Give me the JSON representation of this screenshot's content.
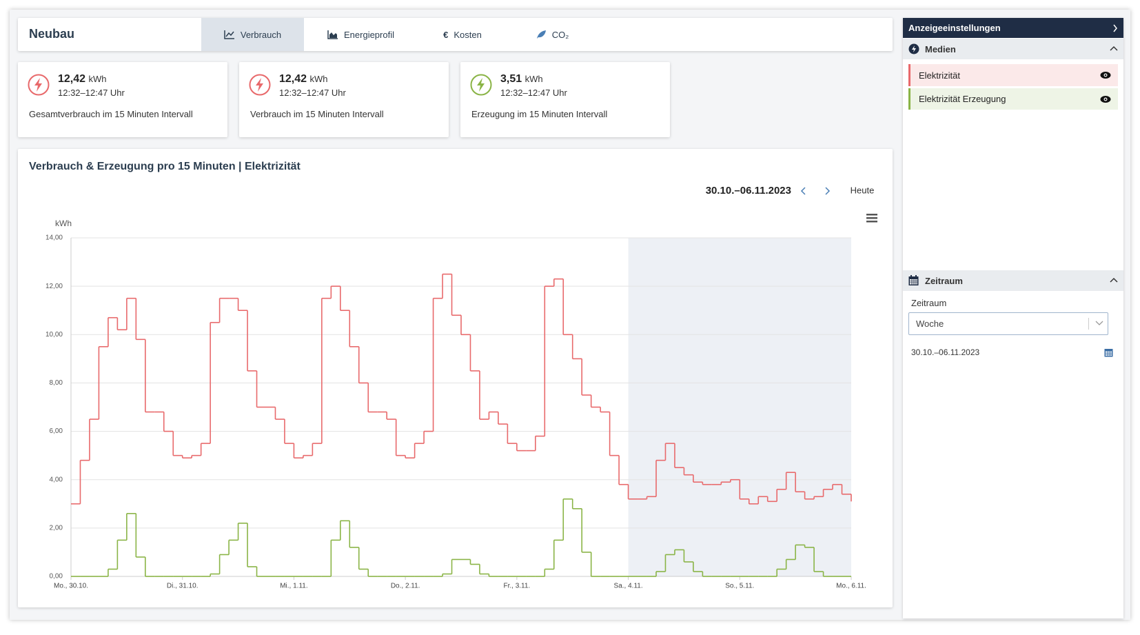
{
  "header": {
    "title": "Neubau",
    "tabs": [
      "Verbrauch",
      "Energieprofil",
      "Kosten",
      "CO₂"
    ]
  },
  "kpis": [
    {
      "value": "12,42",
      "unit": "kWh",
      "time": "12:32–12:47 Uhr",
      "label": "Gesamtverbrauch im 15 Minuten Intervall"
    },
    {
      "value": "12,42",
      "unit": "kWh",
      "time": "12:32–12:47 Uhr",
      "label": "Verbrauch im 15 Minuten Intervall"
    },
    {
      "value": "3,51",
      "unit": "kWh",
      "time": "12:32–12:47 Uhr",
      "label": "Erzeugung im 15 Minuten Intervall"
    }
  ],
  "chart_data": {
    "type": "line",
    "step": true,
    "title": "Verbrauch & Erzeugung pro 15 Minuten | Elektrizität",
    "date_range": "30.10.–06.11.2023",
    "today_button": "Heute",
    "y_label": "kWh",
    "weekend_from": "Sa., 4.11.",
    "categories": [
      "Mo., 30.10.",
      null,
      null,
      null,
      null,
      null,
      null,
      null,
      null,
      null,
      null,
      null,
      "Di., 31.10.",
      null,
      null,
      null,
      null,
      null,
      null,
      null,
      null,
      null,
      null,
      null,
      "Mi., 1.11.",
      null,
      null,
      null,
      null,
      null,
      null,
      null,
      null,
      null,
      null,
      null,
      "Do., 2.11.",
      null,
      null,
      null,
      null,
      null,
      null,
      null,
      null,
      null,
      null,
      null,
      "Fr., 3.11.",
      null,
      null,
      null,
      null,
      null,
      null,
      null,
      null,
      null,
      null,
      null,
      "Sa., 4.11.",
      null,
      null,
      null,
      null,
      null,
      null,
      null,
      null,
      null,
      null,
      null,
      "So., 5.11.",
      null,
      null,
      null,
      null,
      null,
      null,
      null,
      null,
      null,
      null,
      null,
      "Mo., 6.11."
    ],
    "series": [
      {
        "name": "Elektrizität",
        "color": "#e8696b",
        "values": [
          3.0,
          4.8,
          6.5,
          9.5,
          10.7,
          10.2,
          11.5,
          9.8,
          6.8,
          6.8,
          6.0,
          5.0,
          4.9,
          5.0,
          5.5,
          10.5,
          11.5,
          11.5,
          11.0,
          8.5,
          7.0,
          7.0,
          6.5,
          5.5,
          4.9,
          5.0,
          5.5,
          11.5,
          12.0,
          11.0,
          9.5,
          8.0,
          6.8,
          6.8,
          6.5,
          5.0,
          4.9,
          5.5,
          6.0,
          11.5,
          12.5,
          10.8,
          10.0,
          8.5,
          6.5,
          6.8,
          6.3,
          5.5,
          5.2,
          5.2,
          5.8,
          12.0,
          12.3,
          10.0,
          9.0,
          7.5,
          7.0,
          6.8,
          5.0,
          3.8,
          3.2,
          3.2,
          3.3,
          4.8,
          5.5,
          4.5,
          4.2,
          3.9,
          3.8,
          3.8,
          3.9,
          4.0,
          3.2,
          3.0,
          3.3,
          3.1,
          3.6,
          4.3,
          3.5,
          3.2,
          3.3,
          3.6,
          3.8,
          3.4,
          3.1
        ]
      },
      {
        "name": "Elektrizität Erzeugung",
        "color": "#8ab446",
        "values": [
          0,
          0,
          0,
          0,
          0.3,
          1.5,
          2.6,
          0.8,
          0,
          0,
          0,
          0,
          0,
          0,
          0,
          0.1,
          0.9,
          1.5,
          2.2,
          0.4,
          0,
          0,
          0,
          0,
          0,
          0,
          0,
          0,
          1.5,
          2.3,
          1.2,
          0.3,
          0,
          0,
          0,
          0,
          0,
          0,
          0,
          0,
          0.1,
          0.7,
          0.7,
          0.5,
          0.1,
          0,
          0,
          0,
          0,
          0,
          0,
          0.3,
          1.5,
          3.2,
          2.8,
          1.0,
          0,
          0,
          0,
          0,
          0,
          0,
          0,
          0.2,
          0.9,
          1.1,
          0.6,
          0.2,
          0,
          0,
          0,
          0,
          0,
          0,
          0,
          0,
          0.3,
          0.7,
          1.3,
          1.2,
          0.2,
          0,
          0,
          0,
          0
        ]
      }
    ],
    "ylim": [
      0,
      14
    ],
    "yticks": [
      {
        "value": 0,
        "label": "0,00"
      },
      {
        "value": 2,
        "label": "2,00"
      },
      {
        "value": 4,
        "label": "4,00"
      },
      {
        "value": 6,
        "label": "6,00"
      },
      {
        "value": 8,
        "label": "8,00"
      },
      {
        "value": 10,
        "label": "10,00"
      },
      {
        "value": 12,
        "label": "12,00"
      },
      {
        "value": 14,
        "label": "14,00"
      }
    ],
    "grid": true
  },
  "sidebar": {
    "title": "Anzeigeeinstellungen",
    "media_section": "Medien",
    "period_section": "Zeitraum",
    "period_label": "Zeitraum",
    "period_value": "Woche",
    "period_range": "30.10.–06.11.2023"
  }
}
